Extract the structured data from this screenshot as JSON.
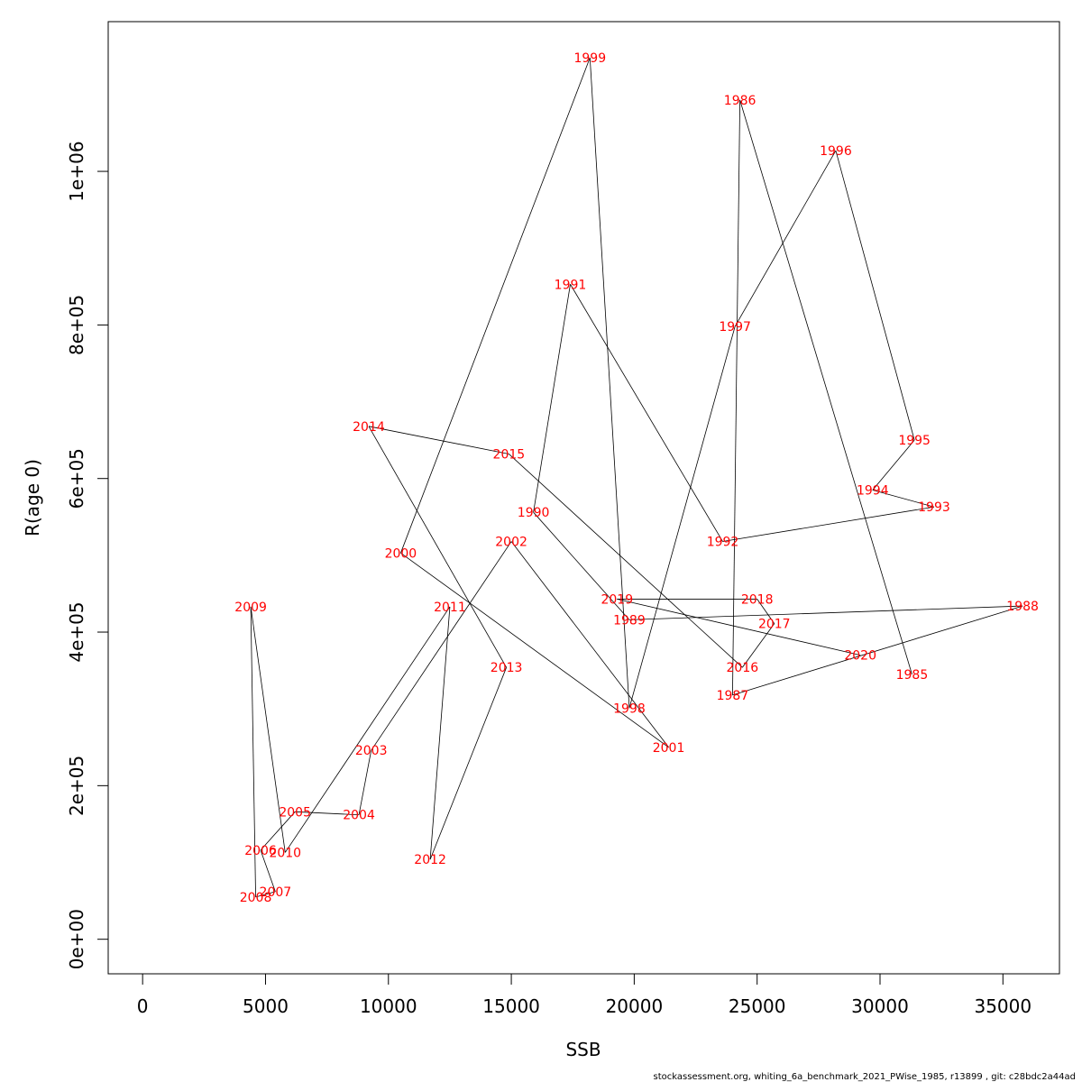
{
  "chart_data": {
    "type": "line",
    "xlabel": "SSB",
    "ylabel": "R(age 0)",
    "xlim": [
      -1400,
      37300
    ],
    "ylim": [
      -45000,
      1195000
    ],
    "x_ticks": [
      0,
      5000,
      10000,
      15000,
      20000,
      25000,
      30000,
      35000
    ],
    "x_tick_labels": [
      "0",
      "5000",
      "10000",
      "15000",
      "20000",
      "25000",
      "30000",
      "35000"
    ],
    "y_ticks": [
      0,
      200000,
      400000,
      600000,
      800000,
      1000000
    ],
    "y_tick_labels": [
      "0e+00",
      "2e+05",
      "4e+05",
      "6e+05",
      "8e+05",
      "1e+06"
    ],
    "line_color": "#000000",
    "label_color": "#ff0000",
    "grid": false,
    "points": [
      {
        "year": "1985",
        "x": 31300,
        "y": 345000
      },
      {
        "year": "1986",
        "x": 24300,
        "y": 1093000
      },
      {
        "year": "1987",
        "x": 24000,
        "y": 318000
      },
      {
        "year": "1988",
        "x": 35800,
        "y": 434000
      },
      {
        "year": "1989",
        "x": 19800,
        "y": 416000
      },
      {
        "year": "1990",
        "x": 15900,
        "y": 556000
      },
      {
        "year": "1991",
        "x": 17400,
        "y": 853000
      },
      {
        "year": "1992",
        "x": 23600,
        "y": 518000
      },
      {
        "year": "1993",
        "x": 32200,
        "y": 563000
      },
      {
        "year": "1994",
        "x": 29700,
        "y": 585000
      },
      {
        "year": "1995",
        "x": 31400,
        "y": 650000
      },
      {
        "year": "1996",
        "x": 28200,
        "y": 1027000
      },
      {
        "year": "1997",
        "x": 24100,
        "y": 798000
      },
      {
        "year": "1998",
        "x": 19800,
        "y": 301000
      },
      {
        "year": "1999",
        "x": 18200,
        "y": 1148000
      },
      {
        "year": "2000",
        "x": 10500,
        "y": 503000
      },
      {
        "year": "2001",
        "x": 21400,
        "y": 250000
      },
      {
        "year": "2002",
        "x": 15000,
        "y": 518000
      },
      {
        "year": "2003",
        "x": 9300,
        "y": 246000
      },
      {
        "year": "2004",
        "x": 8800,
        "y": 162000
      },
      {
        "year": "2005",
        "x": 6200,
        "y": 166000
      },
      {
        "year": "2006",
        "x": 4800,
        "y": 116000
      },
      {
        "year": "2007",
        "x": 5400,
        "y": 62000
      },
      {
        "year": "2008",
        "x": 4600,
        "y": 55000
      },
      {
        "year": "2009",
        "x": 4400,
        "y": 433000
      },
      {
        "year": "2010",
        "x": 5800,
        "y": 113000
      },
      {
        "year": "2011",
        "x": 12500,
        "y": 433000
      },
      {
        "year": "2012",
        "x": 11700,
        "y": 104000
      },
      {
        "year": "2013",
        "x": 14800,
        "y": 354000
      },
      {
        "year": "2014",
        "x": 9200,
        "y": 668000
      },
      {
        "year": "2015",
        "x": 14900,
        "y": 632000
      },
      {
        "year": "2016",
        "x": 24400,
        "y": 354000
      },
      {
        "year": "2017",
        "x": 25700,
        "y": 411000
      },
      {
        "year": "2018",
        "x": 25000,
        "y": 443000
      },
      {
        "year": "2019",
        "x": 19300,
        "y": 443000
      },
      {
        "year": "2020",
        "x": 29200,
        "y": 370000
      }
    ]
  },
  "footer": {
    "text": "stockassessment.org, whiting_6a_benchmark_2021_PWise_1985, r13899 , git: c28bdc2a44ad"
  }
}
